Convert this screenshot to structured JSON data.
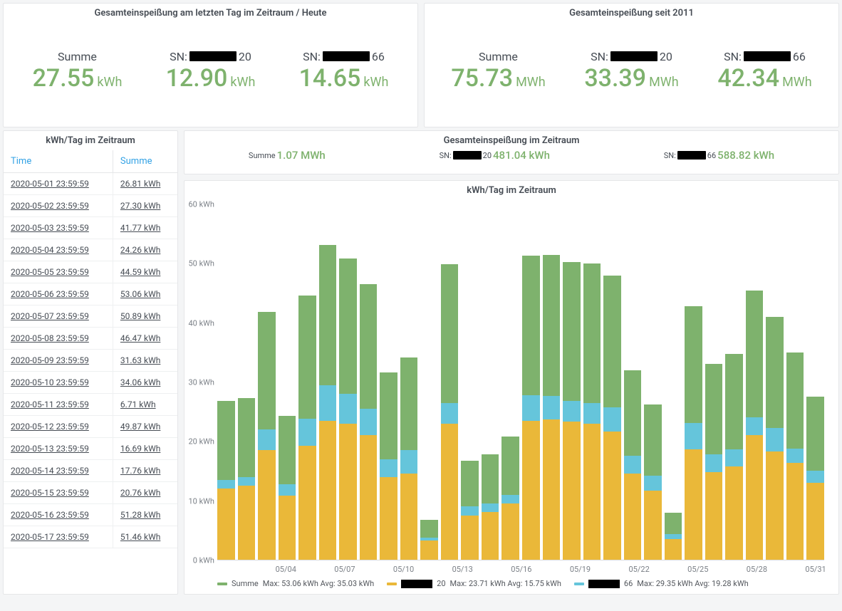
{
  "top_panels": [
    {
      "title": "Gesamteinspeißung am letzten Tag im Zeitraum / Heute",
      "unit": "kWh",
      "stats": [
        {
          "label": "Summe",
          "value": "27.55",
          "redact_w": 0
        },
        {
          "label_prefix": "SN:",
          "label_suffix": "20",
          "value": "12.90",
          "redact_w": 66
        },
        {
          "label_prefix": "SN:",
          "label_suffix": "66",
          "value": "14.65",
          "redact_w": 66
        }
      ]
    },
    {
      "title": "Gesamteinspeißung seit 2011",
      "unit": "MWh",
      "stats": [
        {
          "label": "Summe",
          "value": "75.73",
          "redact_w": 0
        },
        {
          "label_prefix": "SN:",
          "label_suffix": "20",
          "value": "33.39",
          "redact_w": 66
        },
        {
          "label_prefix": "SN:",
          "label_suffix": "66",
          "value": "42.34",
          "redact_w": 66
        }
      ]
    }
  ],
  "table": {
    "title": "kWh/Tag im Zeitraum",
    "col_time": "Time",
    "col_sum": "Summe",
    "rows": [
      {
        "t": "2020-05-01 23:59:59",
        "v": "26.81 kWh"
      },
      {
        "t": "2020-05-02 23:59:59",
        "v": "27.30 kWh"
      },
      {
        "t": "2020-05-03 23:59:59",
        "v": "41.77 kWh"
      },
      {
        "t": "2020-05-04 23:59:59",
        "v": "24.26 kWh"
      },
      {
        "t": "2020-05-05 23:59:59",
        "v": "44.59 kWh"
      },
      {
        "t": "2020-05-06 23:59:59",
        "v": "53.06 kWh"
      },
      {
        "t": "2020-05-07 23:59:59",
        "v": "50.89 kWh"
      },
      {
        "t": "2020-05-08 23:59:59",
        "v": "46.47 kWh"
      },
      {
        "t": "2020-05-09 23:59:59",
        "v": "31.63 kWh"
      },
      {
        "t": "2020-05-10 23:59:59",
        "v": "34.06 kWh"
      },
      {
        "t": "2020-05-11 23:59:59",
        "v": "6.71 kWh"
      },
      {
        "t": "2020-05-12 23:59:59",
        "v": "49.87 kWh"
      },
      {
        "t": "2020-05-13 23:59:59",
        "v": "16.69 kWh"
      },
      {
        "t": "2020-05-14 23:59:59",
        "v": "17.76 kWh"
      },
      {
        "t": "2020-05-15 23:59:59",
        "v": "20.76 kWh"
      },
      {
        "t": "2020-05-16 23:59:59",
        "v": "51.28 kWh"
      },
      {
        "t": "2020-05-17 23:59:59",
        "v": "51.46 kWh"
      }
    ]
  },
  "totals_panel": {
    "title": "Gesamteinspeißung im Zeitraum",
    "items": [
      {
        "label": "Summe",
        "value": "1.07 MWh",
        "redact_w": 0,
        "suffix": ""
      },
      {
        "label": "SN:",
        "suffix": "20",
        "value": "481.04 kWh",
        "redact_w": 40
      },
      {
        "label": "SN:",
        "suffix": "66",
        "value": "588.82 kWh",
        "redact_w": 40
      }
    ]
  },
  "chart": {
    "title": "kWh/Tag im Zeitraum",
    "y_max": 60,
    "y_ticks": [
      0,
      10,
      20,
      30,
      40,
      50,
      60
    ],
    "y_unit": "kWh",
    "colors": {
      "green": "#7eb26d",
      "cyan": "#65c5db",
      "yellow": "#eab839"
    },
    "bg": "#ffffff",
    "x_labels": [
      {
        "pos_pct": 11.3,
        "text": "05/04"
      },
      {
        "pos_pct": 21.0,
        "text": "05/07"
      },
      {
        "pos_pct": 30.7,
        "text": "05/10"
      },
      {
        "pos_pct": 40.4,
        "text": "05/13"
      },
      {
        "pos_pct": 50.1,
        "text": "05/16"
      },
      {
        "pos_pct": 59.8,
        "text": "05/19"
      },
      {
        "pos_pct": 69.5,
        "text": "05/22"
      },
      {
        "pos_pct": 79.2,
        "text": "05/25"
      },
      {
        "pos_pct": 88.9,
        "text": "05/28"
      },
      {
        "pos_pct": 98.6,
        "text": "05/31"
      }
    ],
    "bars": [
      {
        "yellow": 12.0,
        "cyan": 1.5,
        "green": 13.3
      },
      {
        "yellow": 12.5,
        "cyan": 1.5,
        "green": 13.3
      },
      {
        "yellow": 18.5,
        "cyan": 3.5,
        "green": 19.8
      },
      {
        "yellow": 10.8,
        "cyan": 2.0,
        "green": 11.5
      },
      {
        "yellow": 19.3,
        "cyan": 4.5,
        "green": 20.8
      },
      {
        "yellow": 23.5,
        "cyan": 6.0,
        "green": 23.6
      },
      {
        "yellow": 23.0,
        "cyan": 5.0,
        "green": 22.9
      },
      {
        "yellow": 21.0,
        "cyan": 4.5,
        "green": 21.0
      },
      {
        "yellow": 14.0,
        "cyan": 3.0,
        "green": 14.6
      },
      {
        "yellow": 14.5,
        "cyan": 4.0,
        "green": 15.6
      },
      {
        "yellow": 3.2,
        "cyan": 0.5,
        "green": 3.0
      },
      {
        "yellow": 23.0,
        "cyan": 3.5,
        "green": 23.4
      },
      {
        "yellow": 7.5,
        "cyan": 1.5,
        "green": 7.7
      },
      {
        "yellow": 8.0,
        "cyan": 1.5,
        "green": 8.3
      },
      {
        "yellow": 9.5,
        "cyan": 1.5,
        "green": 9.8
      },
      {
        "yellow": 23.5,
        "cyan": 4.3,
        "green": 23.5
      },
      {
        "yellow": 23.7,
        "cyan": 4.0,
        "green": 23.8
      },
      {
        "yellow": 23.3,
        "cyan": 3.5,
        "green": 23.5
      },
      {
        "yellow": 23.0,
        "cyan": 3.5,
        "green": 23.5
      },
      {
        "yellow": 21.7,
        "cyan": 4.0,
        "green": 22.3
      },
      {
        "yellow": 14.5,
        "cyan": 3.0,
        "green": 14.5
      },
      {
        "yellow": 11.7,
        "cyan": 2.5,
        "green": 12.0
      },
      {
        "yellow": 3.5,
        "cyan": 0.8,
        "green": 3.7
      },
      {
        "yellow": 18.6,
        "cyan": 4.5,
        "green": 19.7
      },
      {
        "yellow": 14.8,
        "cyan": 3.0,
        "green": 15.3
      },
      {
        "yellow": 15.7,
        "cyan": 3.0,
        "green": 16.0
      },
      {
        "yellow": 21.0,
        "cyan": 3.0,
        "green": 21.5
      },
      {
        "yellow": 18.3,
        "cyan": 4.0,
        "green": 18.7
      },
      {
        "yellow": 16.3,
        "cyan": 2.5,
        "green": 16.2
      },
      {
        "yellow": 13.0,
        "cyan": 2.0,
        "green": 12.5
      }
    ],
    "legend": [
      {
        "color": "#7eb26d",
        "label": "Summe",
        "stats": "Max: 53.06 kWh  Avg: 35.03 kWh",
        "redact_w": 0,
        "suffix": ""
      },
      {
        "color": "#eab839",
        "label": "",
        "suffix": "20",
        "stats": "Max: 23.71 kWh  Avg: 15.75 kWh",
        "redact_w": 44
      },
      {
        "color": "#65c5db",
        "label": "",
        "suffix": "66",
        "stats": "Max: 29.35 kWh  Avg: 19.28 kWh",
        "redact_w": 44
      }
    ]
  }
}
